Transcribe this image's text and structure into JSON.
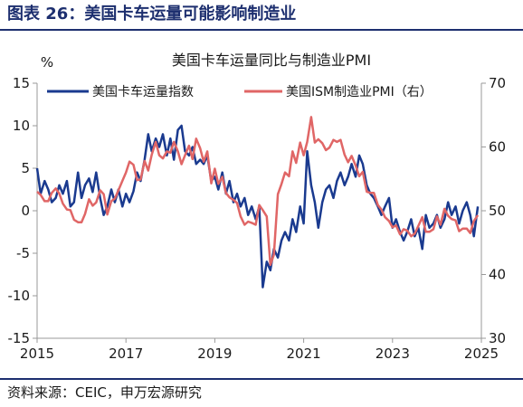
{
  "figure": {
    "title": "图表 26：美国卡车运量可能影响制造业",
    "source": "资料来源：CEIC，申万宏源研究"
  },
  "colors": {
    "series_blue": "#1a3a8f",
    "series_red": "#e06666",
    "title": "#1d2f6f"
  },
  "chart_data": {
    "type": "line",
    "title": "美国卡车运量同比与制造业PMI",
    "ylabel": "%",
    "ylim": [
      -15,
      15
    ],
    "y_ticks": [
      -15,
      -10,
      -5,
      0,
      5,
      10,
      15
    ],
    "y2lim": [
      30,
      70
    ],
    "y2_ticks": [
      30,
      40,
      50,
      60,
      70
    ],
    "x_ticks": [
      "2015",
      "2017",
      "2019",
      "2021",
      "2023",
      "2025"
    ],
    "xlim": [
      2015.0,
      2025.0
    ],
    "grid": false,
    "legend_position": "top",
    "series": [
      {
        "name": "美国卡车运量指数",
        "axis": "left",
        "x": [
          2015.0,
          2015.08,
          2015.17,
          2015.25,
          2015.33,
          2015.42,
          2015.5,
          2015.58,
          2015.67,
          2015.75,
          2015.83,
          2015.92,
          2016.0,
          2016.08,
          2016.17,
          2016.25,
          2016.33,
          2016.42,
          2016.5,
          2016.58,
          2016.67,
          2016.75,
          2016.83,
          2016.92,
          2017.0,
          2017.08,
          2017.17,
          2017.25,
          2017.33,
          2017.42,
          2017.5,
          2017.58,
          2017.67,
          2017.75,
          2017.83,
          2017.92,
          2018.0,
          2018.08,
          2018.17,
          2018.25,
          2018.33,
          2018.42,
          2018.5,
          2018.58,
          2018.67,
          2018.75,
          2018.83,
          2018.92,
          2019.0,
          2019.08,
          2019.17,
          2019.25,
          2019.33,
          2019.42,
          2019.5,
          2019.58,
          2019.67,
          2019.75,
          2019.83,
          2019.92,
          2020.0,
          2020.08,
          2020.17,
          2020.25,
          2020.33,
          2020.42,
          2020.5,
          2020.58,
          2020.67,
          2020.75,
          2020.83,
          2020.92,
          2021.0,
          2021.08,
          2021.17,
          2021.25,
          2021.33,
          2021.42,
          2021.5,
          2021.58,
          2021.67,
          2021.75,
          2021.83,
          2021.92,
          2022.0,
          2022.08,
          2022.17,
          2022.25,
          2022.33,
          2022.42,
          2022.5,
          2022.58,
          2022.67,
          2022.75,
          2022.83,
          2022.92,
          2023.0,
          2023.08,
          2023.17,
          2023.25,
          2023.33,
          2023.42,
          2023.5,
          2023.58,
          2023.67,
          2023.75,
          2023.83,
          2023.92,
          2024.0,
          2024.08,
          2024.17,
          2024.25,
          2024.33,
          2024.42,
          2024.5,
          2024.58,
          2024.67,
          2024.75,
          2024.83,
          2024.92
        ],
        "values": [
          5.0,
          2.0,
          3.5,
          2.5,
          1.0,
          1.5,
          3.0,
          2.0,
          3.5,
          0.5,
          1.0,
          4.5,
          1.5,
          3.0,
          3.8,
          2.2,
          4.5,
          1.5,
          -0.5,
          0.5,
          2.5,
          1.0,
          2.5,
          0.5,
          2.0,
          1.0,
          2.3,
          4.5,
          3.5,
          6.0,
          9.0,
          7.0,
          8.5,
          7.5,
          9.0,
          6.5,
          8.5,
          6.0,
          9.5,
          10.0,
          7.0,
          6.5,
          7.5,
          5.5,
          6.0,
          5.5,
          6.5,
          3.5,
          4.0,
          2.5,
          4.5,
          2.0,
          3.5,
          1.0,
          2.0,
          0.5,
          1.5,
          -0.5,
          0.5,
          -1.0,
          0.5,
          -9.0,
          -6.0,
          -7.0,
          -4.5,
          -5.5,
          -3.5,
          -2.5,
          -3.5,
          -1.0,
          -2.5,
          0.5,
          -1.5,
          7.0,
          3.0,
          1.0,
          -2.0,
          1.0,
          2.5,
          3.0,
          1.5,
          3.5,
          4.5,
          3.0,
          4.0,
          5.5,
          4.0,
          6.5,
          5.5,
          3.0,
          2.0,
          1.5,
          0.5,
          -0.5,
          0.5,
          1.5,
          -2.0,
          -1.0,
          -2.5,
          -3.5,
          -2.5,
          -1.0,
          -3.0,
          -2.0,
          -4.5,
          -0.5,
          -2.0,
          -1.5,
          -0.5,
          -2.0,
          -1.0,
          1.0,
          -0.5,
          0.5,
          -1.5,
          0.0,
          1.0,
          -0.5,
          -3.0,
          0.5
        ]
      },
      {
        "name": "美国ISM制造业PMI（右）",
        "axis": "right",
        "x": [
          2015.0,
          2015.08,
          2015.17,
          2015.25,
          2015.33,
          2015.42,
          2015.5,
          2015.58,
          2015.67,
          2015.75,
          2015.83,
          2015.92,
          2016.0,
          2016.08,
          2016.17,
          2016.25,
          2016.33,
          2016.42,
          2016.5,
          2016.58,
          2016.67,
          2016.75,
          2016.83,
          2016.92,
          2017.0,
          2017.08,
          2017.17,
          2017.25,
          2017.33,
          2017.42,
          2017.5,
          2017.58,
          2017.67,
          2017.75,
          2017.83,
          2017.92,
          2018.0,
          2018.08,
          2018.17,
          2018.25,
          2018.33,
          2018.42,
          2018.5,
          2018.58,
          2018.67,
          2018.75,
          2018.83,
          2018.92,
          2019.0,
          2019.08,
          2019.17,
          2019.25,
          2019.33,
          2019.42,
          2019.5,
          2019.58,
          2019.67,
          2019.75,
          2019.83,
          2019.92,
          2020.0,
          2020.08,
          2020.17,
          2020.25,
          2020.33,
          2020.42,
          2020.5,
          2020.58,
          2020.67,
          2020.75,
          2020.83,
          2020.92,
          2021.0,
          2021.08,
          2021.17,
          2021.25,
          2021.33,
          2021.42,
          2021.5,
          2021.58,
          2021.67,
          2021.75,
          2021.83,
          2021.92,
          2022.0,
          2022.08,
          2022.17,
          2022.25,
          2022.33,
          2022.42,
          2022.5,
          2022.58,
          2022.67,
          2022.75,
          2022.83,
          2022.92,
          2023.0,
          2023.08,
          2023.17,
          2023.25,
          2023.33,
          2023.42,
          2023.5,
          2023.58,
          2023.67,
          2023.75,
          2023.83,
          2023.92,
          2024.0,
          2024.08,
          2024.17,
          2024.25,
          2024.33,
          2024.42,
          2024.5,
          2024.58,
          2024.67,
          2024.75,
          2024.83,
          2024.92
        ],
        "values": [
          53.0,
          52.5,
          51.5,
          51.5,
          52.8,
          53.5,
          52.7,
          51.1,
          50.2,
          50.1,
          48.6,
          48.2,
          48.2,
          49.5,
          51.8,
          50.8,
          51.3,
          53.2,
          52.6,
          49.4,
          51.5,
          51.9,
          53.2,
          54.7,
          56.0,
          57.7,
          57.2,
          54.8,
          54.9,
          57.8,
          56.3,
          58.8,
          60.8,
          58.7,
          58.2,
          59.3,
          59.1,
          60.8,
          59.3,
          57.3,
          58.7,
          60.2,
          58.1,
          61.3,
          59.8,
          57.7,
          59.3,
          54.3,
          56.6,
          54.2,
          55.3,
          52.8,
          52.1,
          51.7,
          51.2,
          49.1,
          47.8,
          48.3,
          48.1,
          47.8,
          50.9,
          50.1,
          49.1,
          41.5,
          43.1,
          52.6,
          54.2,
          56.0,
          55.4,
          59.3,
          57.5,
          60.7,
          58.7,
          60.8,
          64.7,
          60.7,
          61.2,
          60.6,
          59.5,
          59.9,
          61.1,
          60.8,
          61.1,
          58.8,
          57.6,
          58.6,
          57.1,
          55.4,
          56.1,
          53.0,
          52.8,
          52.8,
          50.9,
          50.2,
          49.0,
          48.4,
          47.4,
          47.7,
          46.3,
          47.1,
          46.9,
          46.0,
          46.4,
          47.6,
          49.0,
          46.7,
          46.7,
          47.1,
          49.1,
          47.8,
          50.3,
          49.2,
          48.7,
          48.5,
          46.8,
          47.2,
          47.2,
          46.5,
          48.4,
          49.3
        ]
      }
    ]
  }
}
